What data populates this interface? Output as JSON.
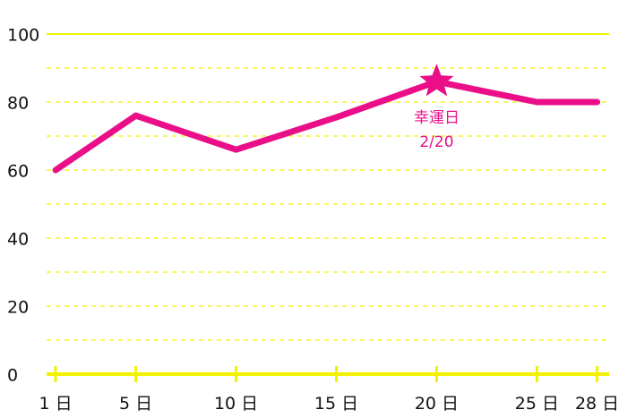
{
  "chart_data": {
    "type": "line",
    "x": [
      1,
      5,
      10,
      15,
      20,
      25,
      28
    ],
    "x_tick_labels": [
      "1 日",
      "5 日",
      "10 日",
      "15 日",
      "20 日",
      "25 日",
      "28 日"
    ],
    "series": [
      {
        "values": [
          60,
          76,
          66,
          75.5,
          86,
          80,
          80
        ]
      }
    ],
    "ylim": [
      0,
      100
    ],
    "y_ticks": [
      0,
      20,
      40,
      60,
      80,
      100
    ],
    "y_tick_labels": [
      "0",
      "20",
      "40",
      "60",
      "80",
      "100"
    ],
    "xlim": [
      0.55,
      28.6
    ],
    "grid": true,
    "annotation": {
      "x": 20,
      "y": 86,
      "marker": "star-icon",
      "label_line1": "幸運日",
      "label_line2": "2/20"
    },
    "colors": {
      "line": "#ea0f88",
      "axis": "#f2f200",
      "grid": "#f2f200",
      "tick_text": "#111111"
    }
  }
}
